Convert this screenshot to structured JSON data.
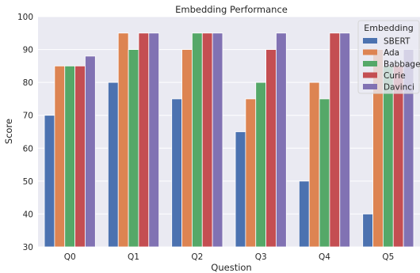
{
  "chart_data": {
    "type": "bar",
    "title": "Embedding Performance",
    "xlabel": "Question",
    "ylabel": "Score",
    "ylim": [
      30,
      100
    ],
    "yticks": [
      30,
      40,
      50,
      60,
      70,
      80,
      90,
      100
    ],
    "grid": true,
    "legend": {
      "title": "Embedding",
      "placement": "top-right"
    },
    "categories": [
      "Q0",
      "Q1",
      "Q2",
      "Q3",
      "Q4",
      "Q5"
    ],
    "series": [
      {
        "name": "SBERT",
        "color": "#4c72b0",
        "values": [
          70,
          80,
          75,
          65,
          50,
          40
        ]
      },
      {
        "name": "Ada",
        "color": "#dd8452",
        "values": [
          85,
          95,
          90,
          75,
          80,
          90
        ]
      },
      {
        "name": "Babbage",
        "color": "#55a868",
        "values": [
          85,
          90,
          95,
          80,
          75,
          85
        ]
      },
      {
        "name": "Curie",
        "color": "#c44e52",
        "values": [
          85,
          95,
          95,
          90,
          95,
          85
        ]
      },
      {
        "name": "Davinci",
        "color": "#8172b3",
        "values": [
          88,
          95,
          95,
          95,
          95,
          90
        ]
      }
    ],
    "colors": {
      "plot_background": "#eaeaf2",
      "grid": "#ffffff",
      "legend_background": "#eaeaf2"
    }
  }
}
